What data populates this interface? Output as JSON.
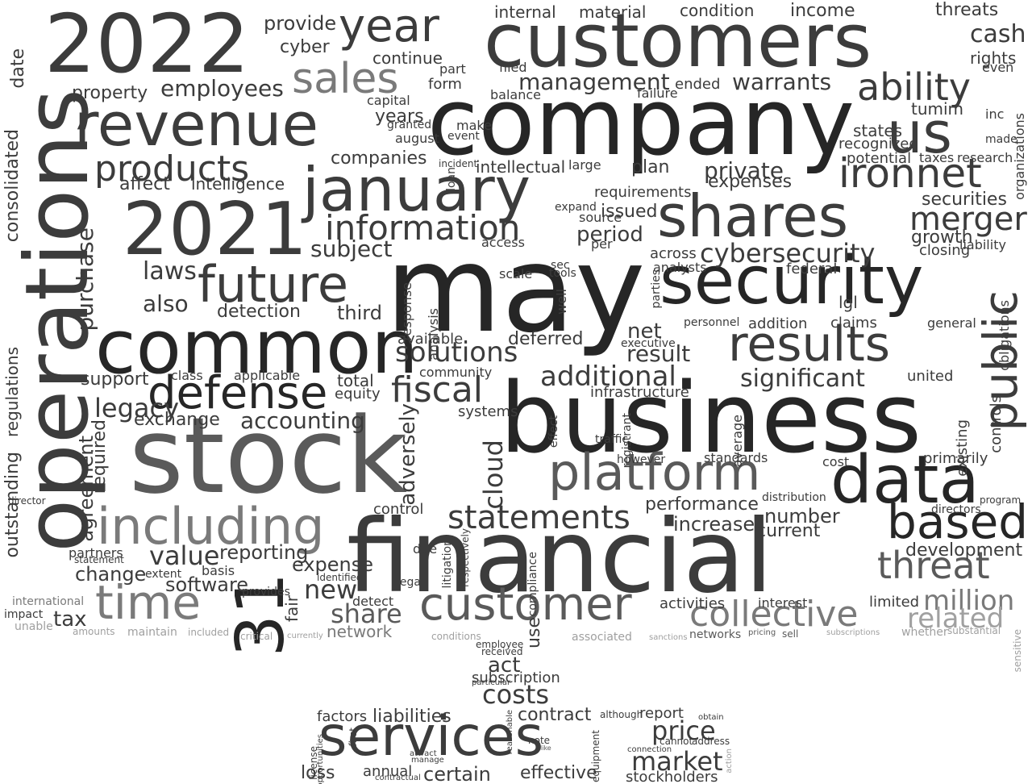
{
  "background": "#ffffff",
  "shades": [
    "#262626",
    "#3c3c3c",
    "#5a5a5a",
    "#7a7a7a",
    "#a0a0a0"
  ],
  "words": [
    "may",
    "business",
    "stock",
    "financial",
    "company",
    "customers",
    "2022",
    "2021",
    "operations",
    "common",
    "security",
    "shares",
    "data",
    "january",
    "revenue",
    "services",
    "platform",
    "including",
    "customer",
    "time",
    "results",
    "31",
    "public",
    "defense",
    "future",
    "year",
    "sales",
    "ironnet",
    "us",
    "collective",
    "statements",
    "threat",
    "based",
    "information",
    "products",
    "ability",
    "fiscal",
    "solutions",
    "cybersecurity",
    "costs",
    "merger",
    "additional",
    "significant",
    "market",
    "price",
    "million",
    "related",
    "value",
    "cash",
    "management",
    "warrants",
    "accounting",
    "legacy",
    "purchase",
    "private",
    "employees",
    "new",
    "share",
    "laws",
    "also",
    "detection",
    "subject",
    "period",
    "securities",
    "growth",
    "tax",
    "change",
    "reporting",
    "expense",
    "software",
    "exchange",
    "support",
    "agreement",
    "required",
    "outstanding",
    "regulations",
    "consolidated",
    "date",
    "property",
    "cyber",
    "provide",
    "continue",
    "internal",
    "material",
    "condition",
    "income",
    "threats",
    "rights",
    "intellectual",
    "intelligence",
    "affect",
    "plan",
    "issued",
    "requirements",
    "expenses",
    "companies",
    "years",
    "result",
    "net",
    "deferred",
    "third",
    "performance",
    "increase",
    "number",
    "current",
    "development",
    "limited",
    "interest",
    "activities",
    "adversely",
    "cloud",
    "act",
    "use",
    "subscription",
    "liabilities",
    "contract",
    "report",
    "effective",
    "stockholders",
    "certain",
    "annual",
    "loss",
    "factors",
    "network",
    "tumim",
    "states",
    "recognized",
    "potential",
    "taxes",
    "research",
    "liability",
    "closing",
    "federal",
    "lgl",
    "infrastructure",
    "control",
    "fair",
    "total",
    "equity",
    "applicable",
    "class",
    "community",
    "systems",
    "available",
    "analysis",
    "response",
    "access",
    "scale",
    "sec",
    "tools",
    "cost",
    "primarily",
    "united",
    "existing",
    "controls",
    "obligations",
    "organizations",
    "even",
    "inc",
    "made",
    "ended",
    "failure",
    "balance",
    "filed",
    "form",
    "part",
    "capital",
    "granted",
    "august",
    "event",
    "make",
    "incident",
    "loan",
    "large",
    "expand",
    "source",
    "per",
    "across",
    "analysts",
    "parties",
    "personnel",
    "executive",
    "addition",
    "claims",
    "general",
    "well",
    "due",
    "respectively",
    "litigation",
    "compliance",
    "effect",
    "registrant",
    "traffic",
    "however",
    "standards",
    "average",
    "distribution",
    "director",
    "directors",
    "program",
    "partners",
    "statement",
    "basis",
    "extent",
    "provides",
    "identified",
    "detect",
    "legal",
    "international",
    "impact",
    "unable",
    "amounts",
    "maintain",
    "included",
    "critical",
    "currently",
    "conditions",
    "associated",
    "sanctions",
    "networks",
    "pricing",
    "sell",
    "subscriptions",
    "whether",
    "substantial",
    "sensitive",
    "received",
    "particular",
    "employee",
    "reasonable",
    "although",
    "obtain",
    "cannot",
    "address",
    "license",
    "opportunities",
    "first",
    "note",
    "like",
    "attract",
    "manage",
    "equipment",
    "connection",
    "action",
    "contractual"
  ]
}
